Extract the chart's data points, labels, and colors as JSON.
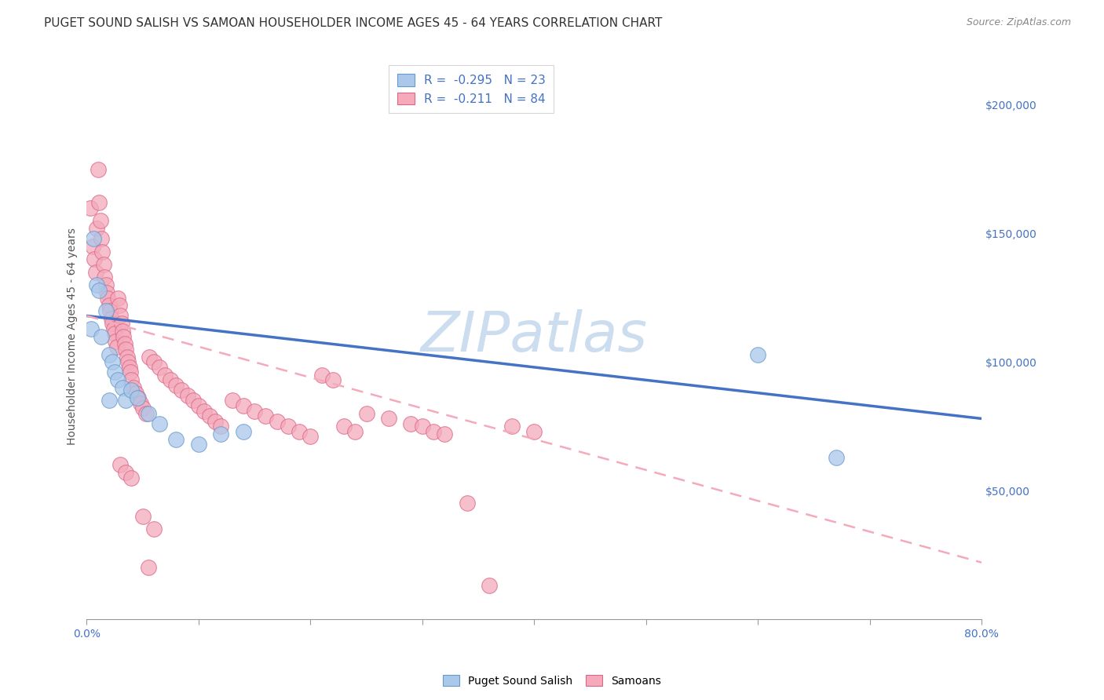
{
  "title": "PUGET SOUND SALISH VS SAMOAN HOUSEHOLDER INCOME AGES 45 - 64 YEARS CORRELATION CHART",
  "source": "Source: ZipAtlas.com",
  "ylabel": "Householder Income Ages 45 - 64 years",
  "ylabel_right_ticks": [
    "$200,000",
    "$150,000",
    "$100,000",
    "$50,000"
  ],
  "ylabel_right_values": [
    200000,
    150000,
    100000,
    50000
  ],
  "xlim": [
    0.0,
    80.0
  ],
  "ylim": [
    0,
    220000
  ],
  "watermark": "ZIPatlas",
  "legend_salish_r": "R = ",
  "legend_salish_rv": "-0.295",
  "legend_salish_n": "  N = ",
  "legend_salish_nv": "23",
  "legend_samoan_r": "R = ",
  "legend_samoan_rv": "-0.211",
  "legend_samoan_n": "  N = ",
  "legend_samoan_nv": "84",
  "salish_color": "#aac8ea",
  "salish_edge": "#6699cc",
  "samoan_color": "#f4aabb",
  "samoan_edge": "#dd6688",
  "salish_points": [
    [
      0.4,
      113000
    ],
    [
      0.6,
      148000
    ],
    [
      0.9,
      130000
    ],
    [
      1.1,
      128000
    ],
    [
      1.3,
      110000
    ],
    [
      1.7,
      120000
    ],
    [
      2.0,
      103000
    ],
    [
      2.3,
      100000
    ],
    [
      2.5,
      96000
    ],
    [
      2.8,
      93000
    ],
    [
      3.2,
      90000
    ],
    [
      3.5,
      85000
    ],
    [
      4.0,
      89000
    ],
    [
      4.5,
      86000
    ],
    [
      5.5,
      80000
    ],
    [
      6.5,
      76000
    ],
    [
      8.0,
      70000
    ],
    [
      10.0,
      68000
    ],
    [
      12.0,
      72000
    ],
    [
      14.0,
      73000
    ],
    [
      60.0,
      103000
    ],
    [
      67.0,
      63000
    ],
    [
      2.0,
      85000
    ]
  ],
  "samoan_points": [
    [
      0.3,
      160000
    ],
    [
      0.5,
      145000
    ],
    [
      0.7,
      140000
    ],
    [
      0.8,
      135000
    ],
    [
      0.9,
      152000
    ],
    [
      1.0,
      175000
    ],
    [
      1.1,
      162000
    ],
    [
      1.2,
      155000
    ],
    [
      1.3,
      148000
    ],
    [
      1.4,
      143000
    ],
    [
      1.5,
      138000
    ],
    [
      1.6,
      133000
    ],
    [
      1.7,
      130000
    ],
    [
      1.8,
      127000
    ],
    [
      1.9,
      125000
    ],
    [
      2.0,
      122000
    ],
    [
      2.1,
      120000
    ],
    [
      2.2,
      117000
    ],
    [
      2.3,
      115000
    ],
    [
      2.4,
      113000
    ],
    [
      2.5,
      111000
    ],
    [
      2.6,
      108000
    ],
    [
      2.7,
      106000
    ],
    [
      2.8,
      125000
    ],
    [
      2.9,
      122000
    ],
    [
      3.0,
      118000
    ],
    [
      3.1,
      115000
    ],
    [
      3.2,
      112000
    ],
    [
      3.3,
      110000
    ],
    [
      3.4,
      107000
    ],
    [
      3.5,
      105000
    ],
    [
      3.6,
      102000
    ],
    [
      3.7,
      100000
    ],
    [
      3.8,
      98000
    ],
    [
      3.9,
      96000
    ],
    [
      4.0,
      93000
    ],
    [
      4.2,
      90000
    ],
    [
      4.4,
      88000
    ],
    [
      4.6,
      86000
    ],
    [
      4.8,
      84000
    ],
    [
      5.0,
      82000
    ],
    [
      5.3,
      80000
    ],
    [
      5.6,
      102000
    ],
    [
      6.0,
      100000
    ],
    [
      6.5,
      98000
    ],
    [
      7.0,
      95000
    ],
    [
      7.5,
      93000
    ],
    [
      8.0,
      91000
    ],
    [
      8.5,
      89000
    ],
    [
      9.0,
      87000
    ],
    [
      9.5,
      85000
    ],
    [
      10.0,
      83000
    ],
    [
      10.5,
      81000
    ],
    [
      11.0,
      79000
    ],
    [
      11.5,
      77000
    ],
    [
      12.0,
      75000
    ],
    [
      13.0,
      85000
    ],
    [
      14.0,
      83000
    ],
    [
      15.0,
      81000
    ],
    [
      16.0,
      79000
    ],
    [
      17.0,
      77000
    ],
    [
      18.0,
      75000
    ],
    [
      19.0,
      73000
    ],
    [
      20.0,
      71000
    ],
    [
      21.0,
      95000
    ],
    [
      22.0,
      93000
    ],
    [
      23.0,
      75000
    ],
    [
      24.0,
      73000
    ],
    [
      25.0,
      80000
    ],
    [
      27.0,
      78000
    ],
    [
      29.0,
      76000
    ],
    [
      30.0,
      75000
    ],
    [
      31.0,
      73000
    ],
    [
      32.0,
      72000
    ],
    [
      34.0,
      45000
    ],
    [
      36.0,
      13000
    ],
    [
      38.0,
      75000
    ],
    [
      40.0,
      73000
    ],
    [
      3.0,
      60000
    ],
    [
      3.5,
      57000
    ],
    [
      4.0,
      55000
    ],
    [
      5.0,
      40000
    ],
    [
      6.0,
      35000
    ],
    [
      5.5,
      20000
    ]
  ],
  "salish_trend_x": [
    0.0,
    80.0
  ],
  "salish_trend_y": [
    118000,
    78000
  ],
  "samoan_trend_x": [
    0.0,
    80.0
  ],
  "samoan_trend_y": [
    118000,
    22000
  ],
  "salish_trend_color": "#4472c4",
  "samoan_trend_color": "#f4aabb",
  "background_color": "#ffffff",
  "grid_color": "#cccccc",
  "title_fontsize": 11,
  "axis_label_fontsize": 10,
  "tick_fontsize": 10,
  "source_fontsize": 9,
  "watermark_color": "#ccddf0",
  "watermark_fontsize": 52
}
